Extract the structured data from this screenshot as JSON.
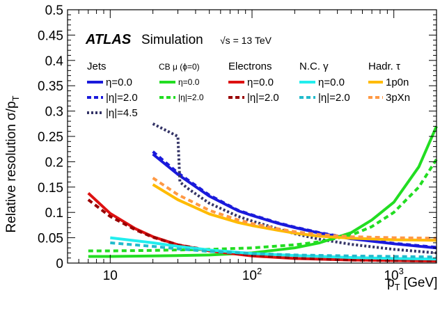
{
  "chart_data": {
    "type": "line",
    "title": "",
    "experiment": "ATLAS",
    "subtitle": "Simulation",
    "energy_label": "√s = 13 TeV",
    "xlabel": "pT [GeV]",
    "xlabel_main": "p",
    "xlabel_sub": "T",
    "xlabel_unit": " [GeV]",
    "ylabel_main": "Relative resolution σ/p",
    "ylabel_sub": "T",
    "xscale": "log",
    "xlim": [
      5,
      2000
    ],
    "ylim": [
      0,
      0.5
    ],
    "x_tick_labels": [
      {
        "value": 10,
        "base": "10",
        "exp": ""
      },
      {
        "value": 100,
        "base": "10",
        "exp": "2"
      },
      {
        "value": 1000,
        "base": "10",
        "exp": "3"
      }
    ],
    "y_ticks": [
      0,
      0.05,
      0.1,
      0.15,
      0.2,
      0.25,
      0.3,
      0.35,
      0.4,
      0.45,
      0.5
    ],
    "y_tick_labels": [
      "0",
      "0.05",
      "0.1",
      "0.15",
      "0.2",
      "0.25",
      "0.3",
      "0.35",
      "0.4",
      "0.45",
      "0.5"
    ],
    "grid": false,
    "legend_placement": "top",
    "legend_groups": [
      {
        "title": "Jets",
        "entries": [
          "η=0.0",
          "|η|=2.0",
          "|η|=4.5"
        ]
      },
      {
        "title": "CB μ (ϕ=0)",
        "entries": [
          "η=0.0",
          "|η|=2.0"
        ]
      },
      {
        "title": "Electrons",
        "entries": [
          "η=0.0",
          "|η|=2.0"
        ]
      },
      {
        "title": "N.C. γ",
        "entries": [
          "η=0.0",
          "|η|=2.0"
        ]
      },
      {
        "title": "Hadr. τ",
        "entries": [
          "1p0n",
          "3pXn"
        ]
      }
    ],
    "series": [
      {
        "name": "Jets η=0.0",
        "group": "Jets",
        "color": "#1a1adb",
        "style": "solid",
        "x": [
          20,
          30,
          50,
          80,
          100,
          150,
          200,
          300,
          500,
          1000,
          2000
        ],
        "y": [
          0.215,
          0.175,
          0.132,
          0.103,
          0.094,
          0.079,
          0.07,
          0.059,
          0.048,
          0.038,
          0.03
        ]
      },
      {
        "name": "Jets |η|=2.0",
        "group": "Jets",
        "color": "#1a1adb",
        "style": "dashed",
        "x": [
          20,
          30,
          50,
          80,
          100,
          150,
          200,
          300,
          500,
          1000,
          2000
        ],
        "y": [
          0.22,
          0.178,
          0.134,
          0.104,
          0.095,
          0.08,
          0.071,
          0.06,
          0.049,
          0.039,
          0.031
        ]
      },
      {
        "name": "Jets |η|=4.5",
        "group": "Jets",
        "color": "#333366",
        "style": "dotted",
        "x": [
          20,
          30,
          31,
          35,
          50,
          80,
          100,
          150,
          200,
          300,
          500,
          1000,
          2000
        ],
        "y": [
          0.275,
          0.25,
          0.16,
          0.148,
          0.118,
          0.092,
          0.083,
          0.068,
          0.058,
          0.047,
          0.037,
          0.027,
          0.02
        ]
      },
      {
        "name": "CB μ η=0.0",
        "group": "CB μ (ϕ=0)",
        "color": "#22dd22",
        "style": "solid",
        "x": [
          7,
          10,
          20,
          50,
          100,
          200,
          300,
          500,
          700,
          1000,
          1500,
          2000
        ],
        "y": [
          0.013,
          0.013,
          0.014,
          0.016,
          0.02,
          0.03,
          0.04,
          0.06,
          0.085,
          0.12,
          0.19,
          0.27
        ]
      },
      {
        "name": "CB μ |η|=2.0",
        "group": "CB μ (ϕ=0)",
        "color": "#22dd22",
        "style": "dashed",
        "x": [
          7,
          10,
          20,
          50,
          100,
          200,
          300,
          500,
          700,
          1000,
          1500,
          2000
        ],
        "y": [
          0.024,
          0.024,
          0.025,
          0.027,
          0.03,
          0.036,
          0.042,
          0.055,
          0.072,
          0.1,
          0.15,
          0.205
        ]
      },
      {
        "name": "Electrons η=0.0",
        "group": "Electrons",
        "color": "#dd1111",
        "style": "solid",
        "x": [
          7,
          10,
          15,
          20,
          30,
          50,
          100,
          200,
          500,
          1000,
          2000
        ],
        "y": [
          0.138,
          0.098,
          0.068,
          0.052,
          0.036,
          0.024,
          0.014,
          0.009,
          0.006,
          0.005,
          0.004
        ]
      },
      {
        "name": "Electrons |η|=2.0",
        "group": "Electrons",
        "color": "#990000",
        "style": "dashed",
        "x": [
          7,
          10,
          15,
          20,
          30,
          50,
          100,
          200,
          500,
          1000,
          2000
        ],
        "y": [
          0.125,
          0.092,
          0.066,
          0.051,
          0.036,
          0.025,
          0.016,
          0.01,
          0.006,
          0.005,
          0.004
        ]
      },
      {
        "name": "N.C. γ η=0.0",
        "group": "N.C. γ",
        "color": "#22eeee",
        "style": "solid",
        "x": [
          10,
          20,
          30,
          50,
          100,
          200,
          500,
          1000,
          2000
        ],
        "y": [
          0.05,
          0.04,
          0.033,
          0.026,
          0.019,
          0.015,
          0.011,
          0.009,
          0.008
        ]
      },
      {
        "name": "N.C. γ |η|=2.0",
        "group": "N.C. γ",
        "color": "#22bbcc",
        "style": "dashed",
        "x": [
          10,
          20,
          30,
          50,
          100,
          200,
          500,
          1000,
          2000
        ],
        "y": [
          0.04,
          0.033,
          0.028,
          0.023,
          0.019,
          0.016,
          0.014,
          0.013,
          0.012
        ]
      },
      {
        "name": "Hadr. τ 1p0n",
        "group": "Hadr. τ",
        "color": "#ffbb00",
        "style": "solid",
        "x": [
          20,
          30,
          50,
          80,
          100,
          150,
          200,
          300,
          500,
          1000,
          2000
        ],
        "y": [
          0.155,
          0.125,
          0.097,
          0.08,
          0.074,
          0.065,
          0.059,
          0.053,
          0.049,
          0.046,
          0.045
        ]
      },
      {
        "name": "Hadr. τ 3pXn",
        "group": "Hadr. τ",
        "color": "#ff9944",
        "style": "dashed",
        "x": [
          20,
          30,
          50,
          80,
          100,
          150,
          200,
          300,
          500,
          1000,
          2000
        ],
        "y": [
          0.168,
          0.135,
          0.104,
          0.085,
          0.078,
          0.068,
          0.062,
          0.056,
          0.052,
          0.05,
          0.049
        ]
      }
    ]
  }
}
